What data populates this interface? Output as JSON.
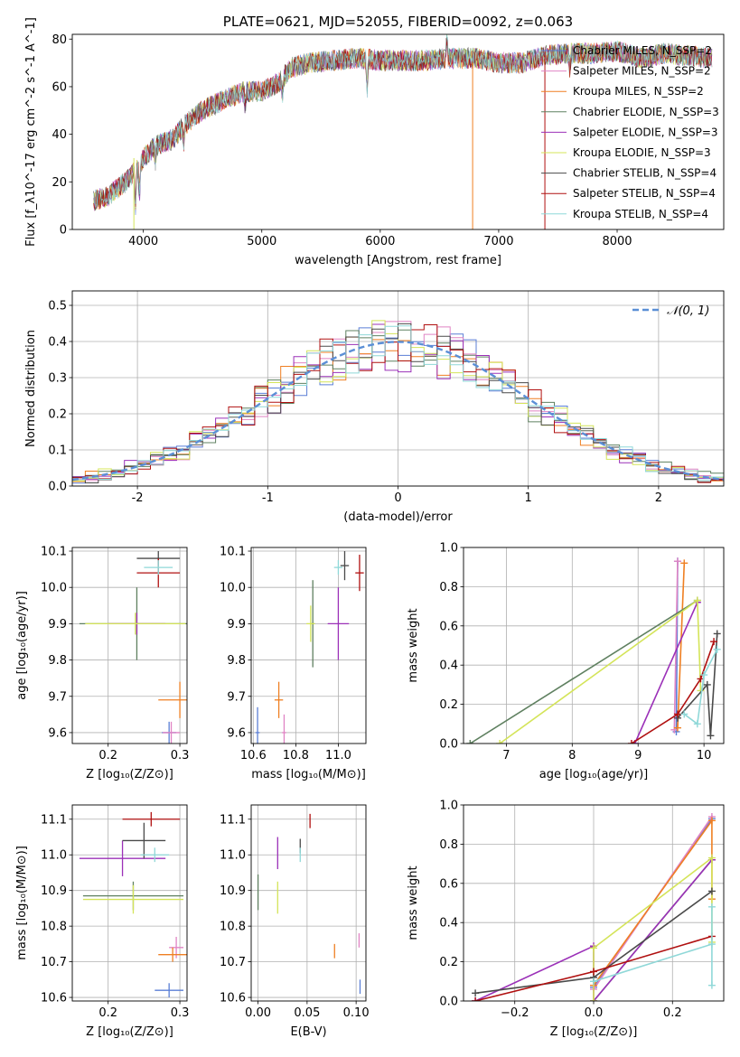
{
  "chart_data": [
    {
      "id": "spectrum",
      "type": "line",
      "title": "PLATE=0621, MJD=52055, FIBERID=0092, z=0.063",
      "xlabel": "wavelength [Angstrom, rest frame]",
      "ylabel": "Flux [f_λ10^-17 erg cm^-2 s^-1 A^-1]",
      "xlim": [
        3400,
        8900
      ],
      "ylim": [
        0,
        82
      ],
      "xticks": [
        4000,
        5000,
        6000,
        7000,
        8000
      ],
      "yticks": [
        0,
        20,
        40,
        60,
        80
      ],
      "legend_position": "top-right",
      "continuum": {
        "x": [
          3580,
          3700,
          3850,
          3920,
          4000,
          4100,
          4250,
          4350,
          4500,
          4700,
          4850,
          5000,
          5150,
          5250,
          5400,
          5600,
          5800,
          6000,
          6200,
          6400,
          6600,
          6800,
          7000,
          7200,
          7400,
          7600,
          7800,
          8000,
          8200,
          8400,
          8600,
          8800
        ],
        "y": [
          12,
          14,
          20,
          24,
          30,
          35,
          38,
          44,
          50,
          55,
          58,
          58,
          62,
          68,
          70,
          71,
          72,
          71,
          71,
          71,
          72,
          72,
          70,
          70,
          73,
          74,
          74,
          75,
          72,
          74,
          73,
          72
        ]
      },
      "series": [
        {
          "name": "Chabrier MILES, N_SSP=2",
          "color": "#5b7fd6"
        },
        {
          "name": "Salpeter MILES, N_SSP=2",
          "color": "#e084c4"
        },
        {
          "name": "Kroupa MILES, N_SSP=2",
          "color": "#ef7f22"
        },
        {
          "name": "Chabrier ELODIE, N_SSP=3",
          "color": "#5f8060"
        },
        {
          "name": "Salpeter ELODIE, N_SSP=3",
          "color": "#9b30b8"
        },
        {
          "name": "Kroupa ELODIE, N_SSP=3",
          "color": "#d4e459"
        },
        {
          "name": "Chabrier STELIB, N_SSP=4",
          "color": "#4a4a4a"
        },
        {
          "name": "Salpeter STELIB, N_SSP=4",
          "color": "#b01010"
        },
        {
          "name": "Kroupa STELIB, N_SSP=4",
          "color": "#8fd8d8"
        }
      ]
    },
    {
      "id": "residuals",
      "type": "histogram",
      "xlabel": "(data-model)/error",
      "ylabel": "Normed distribution",
      "xlim": [
        -2.5,
        2.5
      ],
      "ylim": [
        0,
        0.54
      ],
      "xticks": [
        -2,
        -1,
        0,
        1,
        2
      ],
      "yticks": [
        0.0,
        0.1,
        0.2,
        0.3,
        0.4,
        0.5
      ],
      "grid": true,
      "legend": "𝒩(0, 1)",
      "legend_position": "top-right",
      "curve_color": "#5b8fd6"
    },
    {
      "id": "age-vs-Z",
      "type": "scatter",
      "xlabel": "Z [log₁₀(Z/Z⊙)]",
      "ylabel": "age  [log₁₀(age/yr)]",
      "xlim": [
        0.15,
        0.31
      ],
      "ylim": [
        9.57,
        10.11
      ],
      "xticks": [
        0.2,
        0.3
      ],
      "yticks": [
        9.6,
        9.7,
        9.8,
        9.9,
        10.0,
        10.1
      ],
      "grid": true,
      "points": [
        {
          "x": 0.285,
          "y": 9.6,
          "xerr": 0.01,
          "yerr": 0.03,
          "c": "#5b7fd6"
        },
        {
          "x": 0.288,
          "y": 9.6,
          "xerr": 0.012,
          "yerr": 0.03,
          "c": "#e084c4"
        },
        {
          "x": 0.3,
          "y": 9.69,
          "xerr": 0.03,
          "yerr": 0.05,
          "c": "#ef7f22"
        },
        {
          "x": 0.24,
          "y": 9.9,
          "xerr": 0.08,
          "yerr": 0.1,
          "c": "#5f8060"
        },
        {
          "x": 0.24,
          "y": 9.9,
          "xerr": 0.04,
          "yerr": 0.03,
          "c": "#9b30b8"
        },
        {
          "x": 0.238,
          "y": 9.9,
          "xerr": 0.07,
          "yerr": 0.03,
          "c": "#d4e459"
        },
        {
          "x": 0.27,
          "y": 10.08,
          "xerr": 0.03,
          "yerr": 0.02,
          "c": "#4a4a4a"
        },
        {
          "x": 0.27,
          "y": 10.04,
          "xerr": 0.03,
          "yerr": 0.04,
          "c": "#b01010"
        },
        {
          "x": 0.27,
          "y": 10.055,
          "xerr": 0.02,
          "yerr": 0.02,
          "c": "#8fd8d8"
        }
      ]
    },
    {
      "id": "age-vs-mass",
      "type": "scatter",
      "xlabel": "mass [log₁₀(M/M⊙)]",
      "ylabel": "",
      "xlim": [
        10.59,
        11.13
      ],
      "ylim": [
        9.57,
        10.11
      ],
      "xticks": [
        10.6,
        10.8,
        11.0
      ],
      "yticks": [
        9.6,
        9.7,
        9.8,
        9.9,
        10.0,
        10.1
      ],
      "grid": true,
      "points": [
        {
          "x": 10.62,
          "y": 9.6,
          "xerr": 0.01,
          "yerr": 0.07,
          "c": "#5b7fd6"
        },
        {
          "x": 10.745,
          "y": 9.6,
          "xerr": 0.01,
          "yerr": 0.05,
          "c": "#e084c4"
        },
        {
          "x": 10.72,
          "y": 9.69,
          "xerr": 0.02,
          "yerr": 0.05,
          "c": "#ef7f22"
        },
        {
          "x": 10.88,
          "y": 9.9,
          "xerr": 0.01,
          "yerr": 0.12,
          "c": "#5f8060"
        },
        {
          "x": 11.0,
          "y": 9.9,
          "xerr": 0.05,
          "yerr": 0.1,
          "c": "#9b30b8"
        },
        {
          "x": 10.87,
          "y": 9.9,
          "xerr": 0.02,
          "yerr": 0.05,
          "c": "#d4e459"
        },
        {
          "x": 11.03,
          "y": 10.06,
          "xerr": 0.02,
          "yerr": 0.04,
          "c": "#4a4a4a"
        },
        {
          "x": 11.1,
          "y": 10.04,
          "xerr": 0.02,
          "yerr": 0.05,
          "c": "#b01010"
        },
        {
          "x": 11.0,
          "y": 10.055,
          "xerr": 0.02,
          "yerr": 0.02,
          "c": "#8fd8d8"
        }
      ]
    },
    {
      "id": "weight-vs-age",
      "type": "line",
      "xlabel": "age  [log₁₀(age/yr)]",
      "ylabel": "mass weight",
      "xlim": [
        6.35,
        10.3
      ],
      "ylim": [
        0,
        1.0
      ],
      "xticks": [
        7,
        8,
        9,
        10
      ],
      "yticks": [
        0.0,
        0.2,
        0.4,
        0.6,
        0.8,
        1.0
      ],
      "grid": true,
      "series": [
        {
          "c": "#5b7fd6",
          "x": [
            9.58,
            9.6
          ],
          "y": [
            0.06,
            0.93
          ]
        },
        {
          "c": "#e084c4",
          "x": [
            9.55,
            9.6
          ],
          "y": [
            0.07,
            0.93
          ]
        },
        {
          "c": "#ef7f22",
          "x": [
            9.6,
            9.7
          ],
          "y": [
            0.08,
            0.92
          ]
        },
        {
          "c": "#5f8060",
          "x": [
            6.45,
            9.9
          ],
          "y": [
            0.0,
            0.73
          ]
        },
        {
          "c": "#9b30b8",
          "x": [
            8.95,
            9.9
          ],
          "y": [
            0.0,
            0.72
          ]
        },
        {
          "c": "#d4e459",
          "x": [
            6.9,
            9.9,
            9.95
          ],
          "y": [
            0.0,
            0.73,
            0.27
          ]
        },
        {
          "c": "#4a4a4a",
          "x": [
            9.6,
            10.05,
            10.1,
            10.2
          ],
          "y": [
            0.13,
            0.3,
            0.04,
            0.56
          ]
        },
        {
          "c": "#b01010",
          "x": [
            8.9,
            9.6,
            9.95,
            10.15
          ],
          "y": [
            0.0,
            0.15,
            0.33,
            0.52
          ]
        },
        {
          "c": "#8fd8d8",
          "x": [
            9.7,
            9.9,
            10.0,
            10.2
          ],
          "y": [
            0.15,
            0.1,
            0.35,
            0.48
          ]
        }
      ]
    },
    {
      "id": "mass-vs-Z",
      "type": "scatter",
      "xlabel": "Z [log₁₀(Z/Z⊙)]",
      "ylabel": "mass [log₁₀(M/M⊙)]",
      "xlim": [
        0.15,
        0.31
      ],
      "ylim": [
        10.59,
        11.14
      ],
      "xticks": [
        0.2,
        0.3
      ],
      "yticks": [
        10.6,
        10.7,
        10.8,
        10.9,
        11.0,
        11.1
      ],
      "grid": true,
      "points": [
        {
          "x": 0.285,
          "y": 10.62,
          "xerr": 0.02,
          "yerr": 0.02,
          "c": "#5b7fd6"
        },
        {
          "x": 0.295,
          "y": 10.74,
          "xerr": 0.01,
          "yerr": 0.03,
          "c": "#e084c4"
        },
        {
          "x": 0.29,
          "y": 10.72,
          "xerr": 0.02,
          "yerr": 0.02,
          "c": "#ef7f22"
        },
        {
          "x": 0.235,
          "y": 10.885,
          "xerr": 0.07,
          "yerr": 0.04,
          "c": "#5f8060"
        },
        {
          "x": 0.22,
          "y": 10.99,
          "xerr": 0.06,
          "yerr": 0.05,
          "c": "#9b30b8"
        },
        {
          "x": 0.235,
          "y": 10.875,
          "xerr": 0.07,
          "yerr": 0.04,
          "c": "#d4e459"
        },
        {
          "x": 0.25,
          "y": 11.04,
          "xerr": 0.03,
          "yerr": 0.05,
          "c": "#4a4a4a"
        },
        {
          "x": 0.26,
          "y": 11.1,
          "xerr": 0.04,
          "yerr": 0.02,
          "c": "#b01010"
        },
        {
          "x": 0.265,
          "y": 11.0,
          "xerr": 0.02,
          "yerr": 0.02,
          "c": "#8fd8d8"
        }
      ]
    },
    {
      "id": "mass-vs-EBV",
      "type": "scatter",
      "xlabel": "E(B-V)",
      "ylabel": "",
      "xlim": [
        -0.007,
        0.11
      ],
      "ylim": [
        10.59,
        11.14
      ],
      "xticks": [
        0.0,
        0.05,
        0.1
      ],
      "yticks": [
        10.6,
        10.7,
        10.8,
        10.9,
        11.0,
        11.1
      ],
      "grid": true,
      "points": [
        {
          "x": 0.104,
          "y": 10.63,
          "xerr": 0.0,
          "yerr": 0.02,
          "c": "#5b7fd6"
        },
        {
          "x": 0.103,
          "y": 10.76,
          "xerr": 0.0,
          "yerr": 0.02,
          "c": "#e084c4"
        },
        {
          "x": 0.078,
          "y": 10.73,
          "xerr": 0.0,
          "yerr": 0.02,
          "c": "#ef7f22"
        },
        {
          "x": 0.0,
          "y": 10.895,
          "xerr": 0.0,
          "yerr": 0.05,
          "c": "#5f8060"
        },
        {
          "x": 0.02,
          "y": 11.005,
          "xerr": 0.0,
          "yerr": 0.045,
          "c": "#9b30b8"
        },
        {
          "x": 0.02,
          "y": 10.88,
          "xerr": 0.0,
          "yerr": 0.045,
          "c": "#d4e459"
        },
        {
          "x": 0.043,
          "y": 11.025,
          "xerr": 0.0,
          "yerr": 0.02,
          "c": "#4a4a4a"
        },
        {
          "x": 0.053,
          "y": 11.095,
          "xerr": 0.0,
          "yerr": 0.02,
          "c": "#b01010"
        },
        {
          "x": 0.043,
          "y": 11.0,
          "xerr": 0.0,
          "yerr": 0.02,
          "c": "#8fd8d8"
        }
      ]
    },
    {
      "id": "weight-vs-Z",
      "type": "line",
      "xlabel": "Z [log₁₀(Z/Z⊙)]",
      "ylabel": "mass weight",
      "xlim": [
        -0.33,
        0.33
      ],
      "ylim": [
        0,
        1.0
      ],
      "xticks": [
        -0.2,
        0.0,
        0.2
      ],
      "xticklabels": [
        "−0.2",
        "0.0",
        "0.2"
      ],
      "yticks": [
        0.0,
        0.2,
        0.4,
        0.6,
        0.8,
        1.0
      ],
      "grid": true,
      "series": [
        {
          "c": "#5b7fd6",
          "x": [
            0.0,
            0.3
          ],
          "y": [
            0.07,
            0.93
          ]
        },
        {
          "c": "#e084c4",
          "x": [
            0.0,
            0.3
          ],
          "y": [
            0.06,
            0.94
          ]
        },
        {
          "c": "#ef7f22",
          "x": [
            0.0,
            0.3,
            0.3
          ],
          "y": [
            0.08,
            0.92,
            0.52
          ]
        },
        {
          "c": "#5f8060",
          "x": [
            0.0,
            0.3
          ],
          "y": [
            0.0,
            0.72
          ]
        },
        {
          "c": "#9b30b8",
          "x": [
            -0.3,
            0.0,
            0.0,
            0.3
          ],
          "y": [
            0.0,
            0.28,
            0.0,
            0.72
          ]
        },
        {
          "c": "#d4e459",
          "x": [
            0.0,
            0.0,
            0.3,
            0.3
          ],
          "y": [
            0.0,
            0.27,
            0.73,
            0.3
          ]
        },
        {
          "c": "#4a4a4a",
          "x": [
            -0.3,
            0.0,
            0.3
          ],
          "y": [
            0.04,
            0.12,
            0.56
          ]
        },
        {
          "c": "#b01010",
          "x": [
            -0.3,
            0.0,
            0.3
          ],
          "y": [
            0.0,
            0.15,
            0.33
          ]
        },
        {
          "c": "#8fd8d8",
          "x": [
            0.0,
            0.3,
            0.3,
            0.3
          ],
          "y": [
            0.1,
            0.29,
            0.48,
            0.08
          ]
        }
      ]
    }
  ]
}
